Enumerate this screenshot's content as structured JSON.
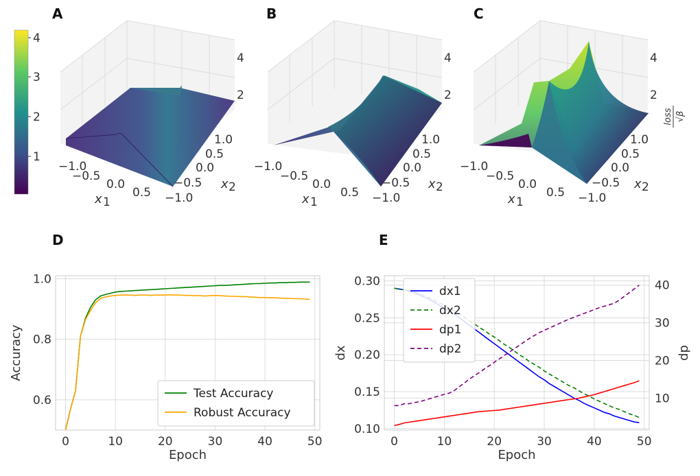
{
  "panels": {
    "A": "A",
    "B": "B",
    "C": "C",
    "D": "D",
    "E": "E"
  },
  "colorbar": {
    "ticks": [
      "1",
      "2",
      "3",
      "4"
    ],
    "stops": [
      "#440154",
      "#3b528b",
      "#21908d",
      "#5dc963",
      "#fde725"
    ]
  },
  "surfaces": {
    "x1_ticks": [
      "−1.0",
      "−0.5",
      "0.0",
      "0.5"
    ],
    "x2_ticks": [
      "−1.0",
      "−0.5",
      "0.0",
      "0.5",
      "1.0"
    ],
    "z_ticks": [
      "2",
      "4"
    ],
    "x1_label": "x",
    "x1_sub": "1",
    "x2_label": "x",
    "x2_sub": "2",
    "z_label_top": "loss",
    "z_label_bottom": "√β"
  },
  "chart_data": [
    {
      "id": "D",
      "type": "line",
      "xlabel": "Epoch",
      "ylabel": "Accuracy",
      "xlim": [
        -2,
        51
      ],
      "ylim": [
        0.5,
        1.01
      ],
      "xticks": [
        0,
        10,
        20,
        30,
        40,
        50
      ],
      "yticks": [
        0.6,
        0.8,
        1.0
      ],
      "ytick_labels": [
        "0.6",
        "0.8",
        "1.0"
      ],
      "grid": true,
      "legend_position": "lower-right",
      "x": [
        0,
        1,
        2,
        3,
        4,
        5,
        6,
        7,
        8,
        9,
        10,
        11,
        12,
        13,
        14,
        15,
        16,
        17,
        18,
        19,
        20,
        21,
        22,
        23,
        24,
        25,
        26,
        27,
        28,
        29,
        30,
        31,
        32,
        33,
        34,
        35,
        36,
        37,
        38,
        39,
        40,
        41,
        42,
        43,
        44,
        45,
        46,
        47,
        48,
        49
      ],
      "series": [
        {
          "name": "Test Accuracy",
          "color": "#008000",
          "style": "solid",
          "values": [
            0.5,
            0.57,
            0.63,
            0.81,
            0.87,
            0.905,
            0.93,
            0.943,
            0.948,
            0.952,
            0.956,
            0.958,
            0.959,
            0.96,
            0.961,
            0.962,
            0.963,
            0.964,
            0.965,
            0.966,
            0.967,
            0.968,
            0.969,
            0.97,
            0.971,
            0.972,
            0.973,
            0.974,
            0.975,
            0.976,
            0.977,
            0.978,
            0.978,
            0.979,
            0.98,
            0.981,
            0.982,
            0.983,
            0.984,
            0.984,
            0.985,
            0.986,
            0.986,
            0.987,
            0.987,
            0.988,
            0.988,
            0.989,
            0.989,
            0.989
          ]
        },
        {
          "name": "Robust Accuracy",
          "color": "#FFA500",
          "style": "solid",
          "values": [
            0.5,
            0.57,
            0.63,
            0.81,
            0.865,
            0.895,
            0.92,
            0.935,
            0.94,
            0.943,
            0.945,
            0.946,
            0.946,
            0.946,
            0.945,
            0.946,
            0.946,
            0.945,
            0.946,
            0.946,
            0.946,
            0.947,
            0.946,
            0.946,
            0.945,
            0.945,
            0.944,
            0.944,
            0.943,
            0.944,
            0.945,
            0.944,
            0.943,
            0.942,
            0.942,
            0.941,
            0.941,
            0.94,
            0.939,
            0.938,
            0.938,
            0.937,
            0.937,
            0.936,
            0.935,
            0.935,
            0.934,
            0.934,
            0.933,
            0.932
          ]
        }
      ]
    },
    {
      "id": "E",
      "type": "line",
      "xlabel": "Epoch",
      "ylabel": "dx",
      "ylabel2": "dp",
      "xlim": [
        -2,
        51
      ],
      "ylim": [
        0.098,
        0.307
      ],
      "ylim2": [
        1.5,
        42.5
      ],
      "xticks": [
        0,
        10,
        20,
        30,
        40,
        50
      ],
      "yticks": [
        0.1,
        0.15,
        0.2,
        0.25,
        0.3
      ],
      "ytick_labels": [
        "0.10",
        "0.15",
        "0.20",
        "0.25",
        "0.30"
      ],
      "yticks2": [
        10,
        20,
        30,
        40
      ],
      "ytick2_labels": [
        "10",
        "20",
        "30",
        "40"
      ],
      "grid": true,
      "legend_position": "upper-left",
      "x": [
        0,
        1,
        2,
        3,
        4,
        5,
        6,
        7,
        8,
        9,
        10,
        11,
        12,
        13,
        14,
        15,
        16,
        17,
        18,
        19,
        20,
        21,
        22,
        23,
        24,
        25,
        26,
        27,
        28,
        29,
        30,
        31,
        32,
        33,
        34,
        35,
        36,
        37,
        38,
        39,
        40,
        41,
        42,
        43,
        44,
        45,
        46,
        47,
        48,
        49
      ],
      "series": [
        {
          "name": "dx1",
          "color": "#0000FF",
          "style": "solid",
          "axis": "left",
          "values": [
            0.29,
            0.289,
            0.288,
            0.286,
            0.284,
            0.281,
            0.278,
            0.275,
            0.271,
            0.267,
            0.263,
            0.259,
            0.255,
            0.25,
            0.245,
            0.24,
            0.235,
            0.23,
            0.225,
            0.22,
            0.215,
            0.21,
            0.205,
            0.2,
            0.195,
            0.19,
            0.185,
            0.18,
            0.175,
            0.17,
            0.166,
            0.161,
            0.157,
            0.153,
            0.149,
            0.145,
            0.141,
            0.138,
            0.134,
            0.131,
            0.128,
            0.125,
            0.122,
            0.12,
            0.117,
            0.115,
            0.113,
            0.111,
            0.109,
            0.108
          ]
        },
        {
          "name": "dx2",
          "color": "#008000",
          "style": "dashed",
          "axis": "left",
          "values": [
            0.29,
            0.289,
            0.288,
            0.287,
            0.285,
            0.283,
            0.28,
            0.277,
            0.274,
            0.27,
            0.267,
            0.263,
            0.259,
            0.255,
            0.251,
            0.246,
            0.242,
            0.237,
            0.233,
            0.228,
            0.224,
            0.219,
            0.214,
            0.21,
            0.205,
            0.2,
            0.196,
            0.191,
            0.187,
            0.183,
            0.178,
            0.174,
            0.17,
            0.166,
            0.162,
            0.158,
            0.155,
            0.151,
            0.147,
            0.144,
            0.14,
            0.137,
            0.134,
            0.131,
            0.128,
            0.126,
            0.123,
            0.12,
            0.118,
            0.115
          ]
        },
        {
          "name": "dp1",
          "color": "#FF0000",
          "style": "solid",
          "axis": "right",
          "values": [
            2.7,
            3.0,
            3.4,
            3.6,
            3.8,
            4.0,
            4.2,
            4.4,
            4.6,
            4.8,
            5.0,
            5.2,
            5.4,
            5.6,
            5.8,
            6.0,
            6.2,
            6.4,
            6.5,
            6.6,
            6.7,
            6.8,
            7.0,
            7.2,
            7.4,
            7.6,
            7.8,
            8.0,
            8.2,
            8.4,
            8.6,
            8.8,
            9.0,
            9.2,
            9.4,
            9.6,
            9.8,
            10.0,
            10.3,
            10.6,
            10.9,
            11.3,
            11.7,
            12.1,
            12.5,
            12.9,
            13.3,
            13.7,
            14.1,
            14.6
          ]
        },
        {
          "name": "dp2",
          "color": "#800080",
          "style": "dashed",
          "axis": "right",
          "values": [
            8.0,
            8.0,
            8.5,
            8.5,
            8.8,
            9.0,
            9.4,
            9.8,
            10.2,
            10.6,
            11.0,
            11.3,
            12.0,
            13.0,
            14.0,
            15.0,
            15.9,
            16.8,
            17.7,
            18.6,
            19.5,
            20.4,
            21.3,
            22.2,
            23.1,
            24.0,
            24.9,
            25.8,
            26.6,
            27.4,
            28.0,
            28.6,
            29.2,
            29.8,
            30.4,
            31.0,
            31.5,
            32.0,
            32.5,
            33.0,
            33.5,
            34.0,
            34.4,
            34.8,
            35.2,
            36.0,
            37.0,
            38.0,
            39.0,
            40.0
          ]
        }
      ]
    }
  ]
}
